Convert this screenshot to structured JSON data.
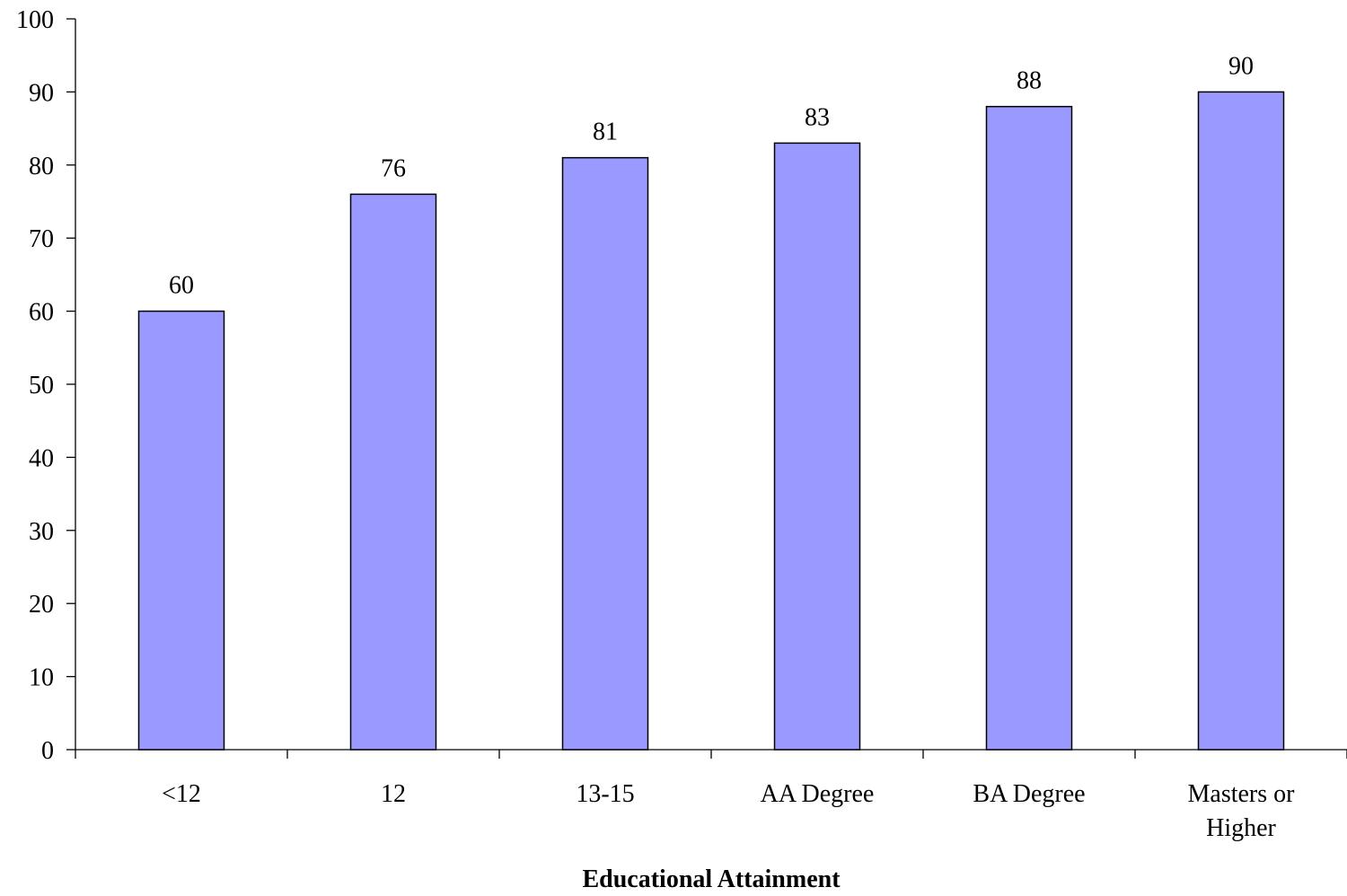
{
  "chart_data": {
    "type": "bar",
    "title": "",
    "xlabel": "Educational Attainment",
    "ylabel": "",
    "ylim": [
      0,
      100
    ],
    "yticks": [
      0,
      10,
      20,
      30,
      40,
      50,
      60,
      70,
      80,
      90,
      100
    ],
    "categories": [
      "<12",
      "12",
      "13-15",
      "AA Degree",
      "BA Degree",
      "Masters or Higher"
    ],
    "category_lines": [
      [
        "<12"
      ],
      [
        "12"
      ],
      [
        "13-15"
      ],
      [
        "AA Degree"
      ],
      [
        "BA Degree"
      ],
      [
        "Masters or",
        "Higher"
      ]
    ],
    "values": [
      60,
      76,
      81,
      83,
      88,
      90
    ],
    "data_labels": [
      "60",
      "76",
      "81",
      "83",
      "88",
      "90"
    ],
    "grid": false,
    "legend": "none",
    "colors": {
      "bar_fill": "#9999ff",
      "bar_stroke": "#000000",
      "axis": "#000000",
      "text": "#000000"
    }
  }
}
